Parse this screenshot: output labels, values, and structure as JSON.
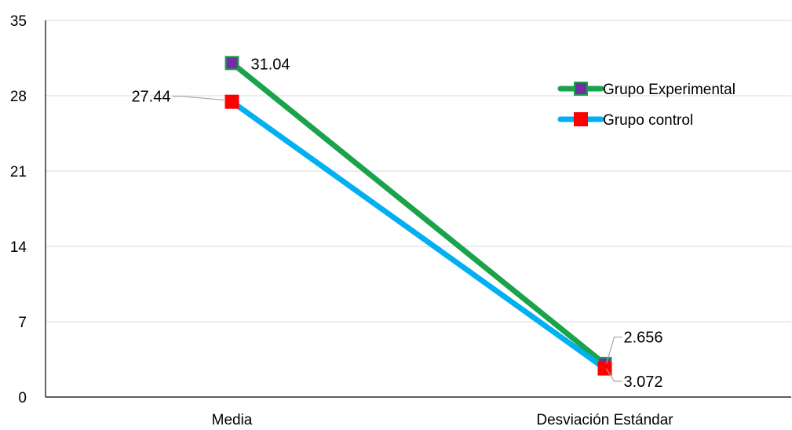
{
  "chart_data": {
    "type": "line",
    "title": "",
    "xlabel": "",
    "ylabel": "",
    "categories": [
      "Media",
      "Desviación Estándar"
    ],
    "ylim": [
      0,
      35
    ],
    "yticks": [
      0,
      7,
      14,
      21,
      28,
      35
    ],
    "grid": true,
    "legend_position": "top-right",
    "series": [
      {
        "name": "Grupo Experimental",
        "values": [
          31.04,
          3.072
        ],
        "labels": [
          "31.04",
          "3.072"
        ],
        "line_color": "#1aa34a",
        "marker_color": "#7030a0",
        "marker_border": "#1aa34a"
      },
      {
        "name": "Grupo control",
        "values": [
          27.44,
          2.656
        ],
        "labels": [
          "27.44",
          "2.656"
        ],
        "line_color": "#00b0f0",
        "marker_color": "#ff0000",
        "marker_border": "#ff0000"
      }
    ]
  }
}
